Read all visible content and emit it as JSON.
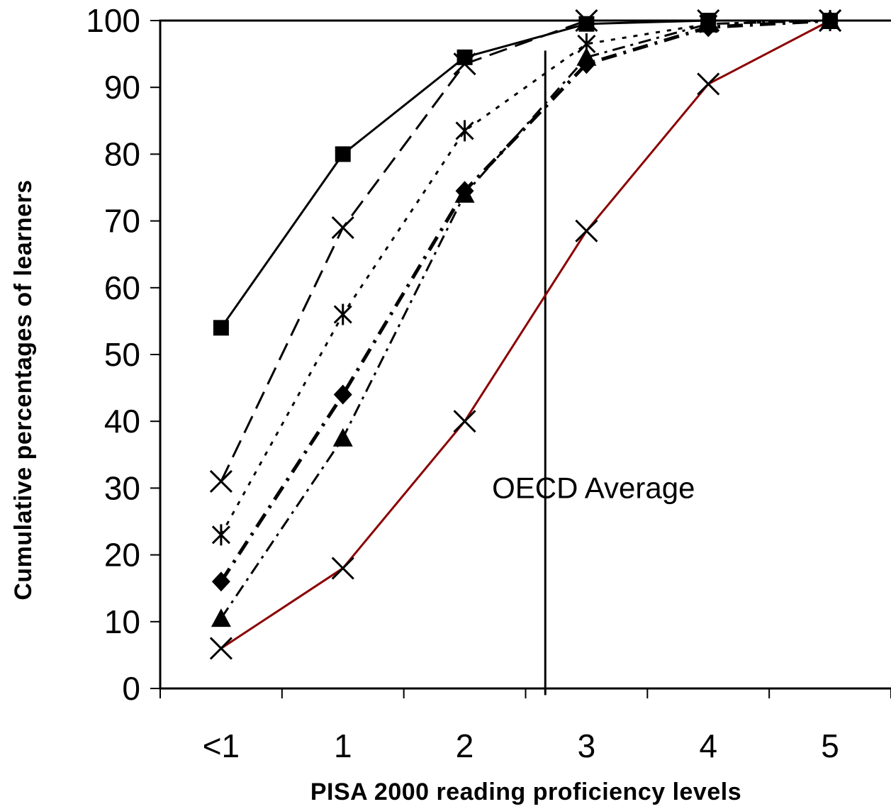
{
  "chart_data": {
    "type": "line",
    "title": "",
    "xlabel": "PISA 2000 reading proficiency levels",
    "ylabel": "Cumulative percentages of learners",
    "categories": [
      "<1",
      "1",
      "2",
      "3",
      "4",
      "5"
    ],
    "ylim": [
      0,
      100
    ],
    "yticks": [
      "0",
      "10",
      "20",
      "30",
      "40",
      "50",
      "60",
      "70",
      "80",
      "90",
      "100"
    ],
    "grid": false,
    "legend": "none",
    "series": [
      {
        "marker": "square",
        "style": "solid",
        "color": "#000000",
        "values": [
          54,
          80,
          94.5,
          99.5,
          100,
          100
        ]
      },
      {
        "marker": "x",
        "style": "dashed",
        "color": "#000000",
        "values": [
          31,
          69,
          93.5,
          100,
          100,
          100
        ]
      },
      {
        "marker": "asterisk",
        "style": "dotted",
        "color": "#000000",
        "values": [
          23,
          56,
          83.5,
          96.5,
          99.5,
          100
        ]
      },
      {
        "marker": "diamond",
        "style": "dash-dot-bold",
        "color": "#000000",
        "values": [
          16,
          44,
          74.5,
          93.5,
          99,
          100
        ]
      },
      {
        "marker": "triangle",
        "style": "dash-dot",
        "color": "#000000",
        "values": [
          10.5,
          37.5,
          74,
          94.5,
          99.5,
          100
        ]
      },
      {
        "marker": "x",
        "style": "solid",
        "color": "#8b0000",
        "values": [
          6,
          18,
          40,
          68.5,
          90.5,
          100
        ]
      }
    ],
    "annotations": [
      {
        "text": "OECD Average",
        "x": 2.65
      }
    ]
  }
}
